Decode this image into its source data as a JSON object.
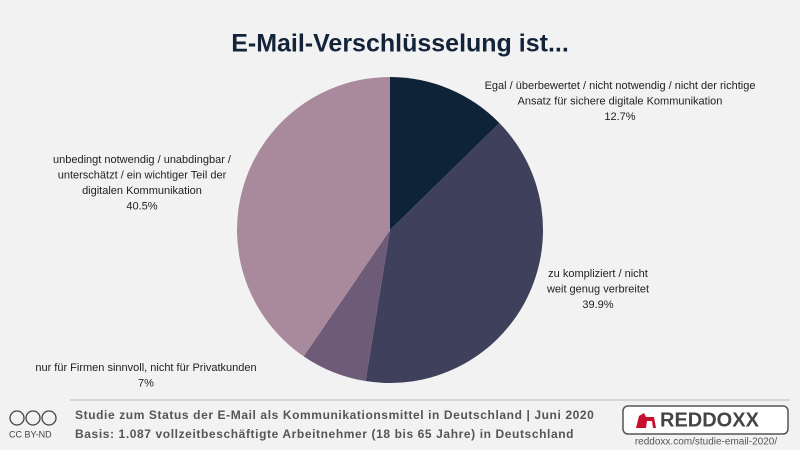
{
  "chart_data": {
    "type": "pie",
    "title": "E-Mail-Verschlüsselung ist...",
    "categories": [
      [
        "Egal / überbewertet / nicht notwendig / nicht der richtige",
        "Ansatz für sichere digitale Kommunikation"
      ],
      [
        "zu kompliziert / nicht",
        "weit genug verbreitet"
      ],
      [
        "nur für Firmen sinnvoll, nicht für Privatkunden"
      ],
      [
        "unbedingt notwendig / unabdingbar /",
        "unterschätzt / ein wichtiger Teil der",
        "digitalen Kommunikation"
      ]
    ],
    "values": [
      12.7,
      39.9,
      7,
      40.5
    ],
    "value_labels": [
      "12.7%",
      "39.9%",
      "7%",
      "40.5%"
    ],
    "colors": [
      "#0e2238",
      "#3f405b",
      "#6d5b78",
      "#a98a9c"
    ]
  },
  "footer": {
    "license": "CC BY-ND",
    "lines": [
      "Studie zum Status der E-Mail als Kommunikationsmittel in Deutschland | Juni 2020",
      "Basis: 1.087 vollzeitbeschäftigte Arbeitnehmer (18 bis 65 Jahre) in Deutschland"
    ],
    "brand": "REDDOXX",
    "url": "reddoxx.com/studie-email-2020/"
  }
}
